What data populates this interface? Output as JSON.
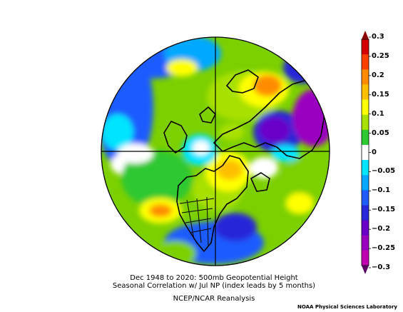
{
  "map": {
    "title_line1": "Dec 1948 to 2020: 500mb Geopotential Height",
    "title_line2": "Seasonal Correlation w/ Jul NP (index leads by 5 months)",
    "dataset": "NCEP/NCAR Reanalysis",
    "credit": "NOAA Physical Sciences Laboratory",
    "projection": "north polar stereographic",
    "variable": "500mb Geopotential Height correlation"
  },
  "colorbar": {
    "labels": [
      "0.3",
      "0.25",
      "0.2",
      "0.15",
      "0.1",
      "0.05",
      "0",
      "−0.05",
      "−0.1",
      "−0.15",
      "−0.2",
      "−0.25",
      "−0.3"
    ],
    "colors_top_to_bottom": [
      "#d40000",
      "#ff4000",
      "#ff8c00",
      "#ffbf00",
      "#ffff00",
      "#a8e000",
      "#2ec830",
      "#ffffff",
      "#00e5ff",
      "#00a8ff",
      "#1f5cff",
      "#2828d8",
      "#6a00c8",
      "#9a00c0",
      "#c000b0"
    ],
    "max_arrow_color": "#8c0000",
    "min_arrow_color": "#5a0064"
  }
}
